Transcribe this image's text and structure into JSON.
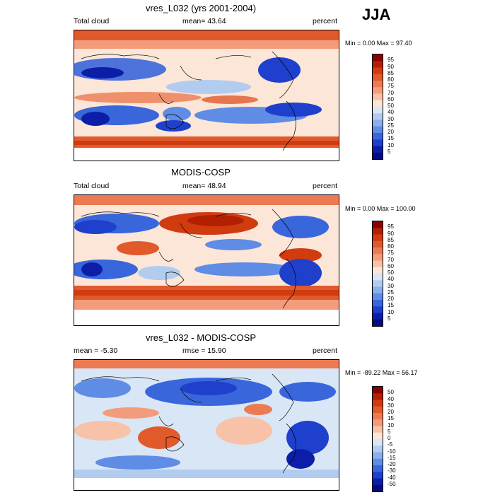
{
  "figure": {
    "season": "JJA",
    "panels": [
      {
        "title": "vres_L032 (yrs 2001-2004)",
        "left_text": "Total cloud",
        "center_text": "mean=  43.64",
        "right_text": "percent",
        "minmax": "Min =   0.00 Max =  97.40",
        "colorbar": {
          "labels": [
            "95",
            "90",
            "85",
            "80",
            "75",
            "70",
            "60",
            "50",
            "40",
            "30",
            "25",
            "20",
            "15",
            "10",
            "5"
          ],
          "colors": [
            "#8b0000",
            "#b22000",
            "#d13b10",
            "#e05a2c",
            "#ec7a52",
            "#f39c7c",
            "#f8c2a8",
            "#fbe6d8",
            "#d9e6f6",
            "#b2ccf0",
            "#8aafea",
            "#5f8ce4",
            "#3a66dc",
            "#1f40cc",
            "#0c1ea8",
            "#050c80"
          ]
        }
      },
      {
        "title": "MODIS-COSP",
        "left_text": "Total cloud",
        "center_text": "mean=  48.94",
        "right_text": "percent",
        "minmax": "Min =   0.00 Max = 100.00",
        "colorbar": {
          "labels": [
            "95",
            "90",
            "85",
            "80",
            "75",
            "70",
            "60",
            "50",
            "40",
            "30",
            "25",
            "20",
            "15",
            "10",
            "5"
          ],
          "colors": [
            "#8b0000",
            "#b22000",
            "#d13b10",
            "#e05a2c",
            "#ec7a52",
            "#f39c7c",
            "#f8c2a8",
            "#fbe6d8",
            "#d9e6f6",
            "#b2ccf0",
            "#8aafea",
            "#5f8ce4",
            "#3a66dc",
            "#1f40cc",
            "#0c1ea8",
            "#050c80"
          ]
        }
      },
      {
        "title": "vres_L032 - MODIS-COSP",
        "left_text": "mean =  -5.30",
        "center_text": "rmse =  15.90",
        "right_text": "percent",
        "minmax": "Min = -89.22 Max =  56.17",
        "colorbar": {
          "labels": [
            "50",
            "40",
            "30",
            "20",
            "15",
            "10",
            "5",
            "0",
            "-5",
            "-10",
            "-15",
            "-20",
            "-30",
            "-40",
            "-50"
          ],
          "colors": [
            "#8b0000",
            "#b22000",
            "#d13b10",
            "#e05a2c",
            "#ec7a52",
            "#f39c7c",
            "#f8c2a8",
            "#fbe6d8",
            "#d9e6f6",
            "#b2ccf0",
            "#8aafea",
            "#5f8ce4",
            "#3a66dc",
            "#1f40cc",
            "#0c1ea8",
            "#050c80"
          ]
        }
      }
    ]
  }
}
